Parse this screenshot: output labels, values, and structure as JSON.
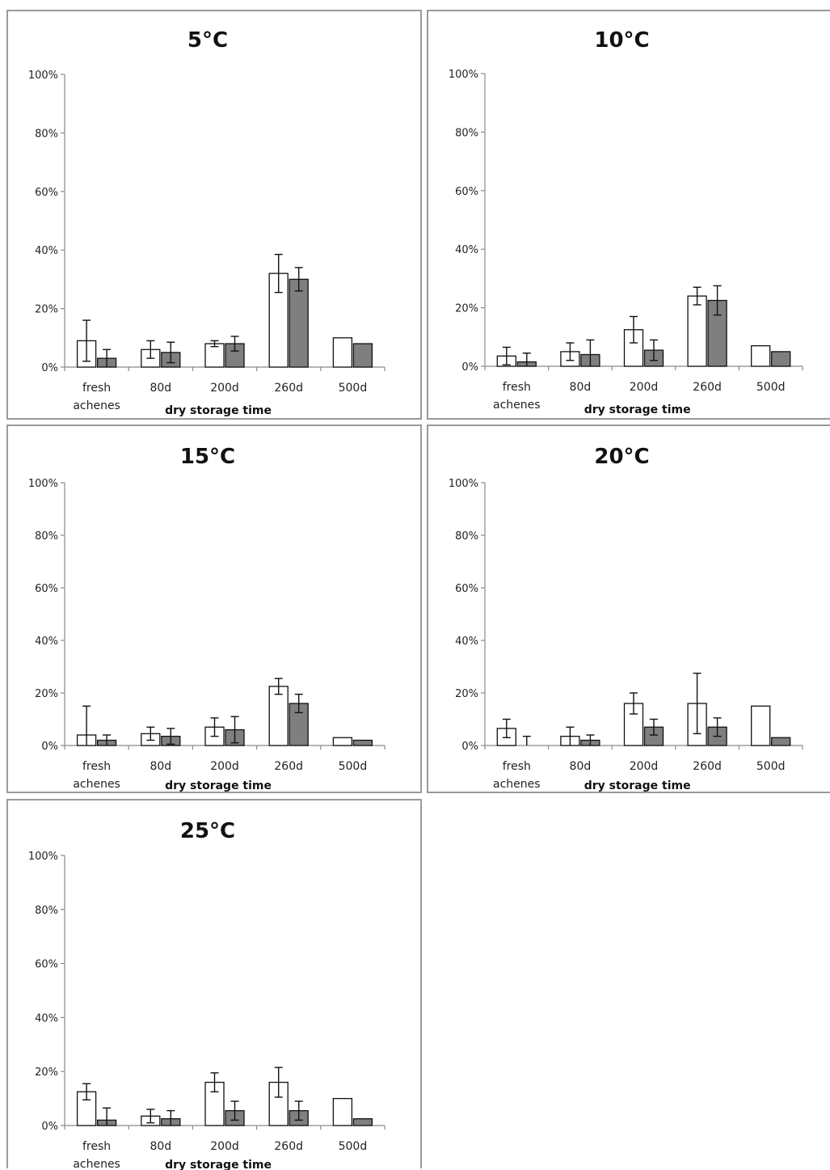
{
  "chart_data": [
    {
      "type": "bar",
      "title": "5°C",
      "xlabel": "dry storage time",
      "ylabel": "",
      "ylim": [
        0,
        100
      ],
      "yticks": [
        "0%",
        "20%",
        "40%",
        "60%",
        "80%",
        "100%"
      ],
      "categories": [
        "fresh achenes",
        "80d",
        "200d",
        "260d",
        "500d"
      ],
      "series": [
        {
          "color": "#ffffff",
          "values": [
            9,
            6,
            8,
            32,
            10
          ],
          "errors": [
            7,
            3,
            1,
            6.5,
            null
          ]
        },
        {
          "color": "#7f7f7f",
          "values": [
            3,
            5,
            8,
            30,
            8
          ],
          "errors": [
            3,
            3.5,
            2.5,
            4,
            null
          ]
        }
      ]
    },
    {
      "type": "bar",
      "title": "10°C",
      "xlabel": "dry storage time",
      "ylabel": "",
      "ylim": [
        0,
        100
      ],
      "yticks": [
        "0%",
        "20%",
        "40%",
        "60%",
        "80%",
        "100%"
      ],
      "categories": [
        "fresh achenes",
        "80d",
        "200d",
        "260d",
        "500d"
      ],
      "series": [
        {
          "color": "#ffffff",
          "values": [
            3.5,
            5,
            12.5,
            24,
            7
          ],
          "errors": [
            3,
            3,
            4.5,
            3,
            null
          ]
        },
        {
          "color": "#7f7f7f",
          "values": [
            1.5,
            4,
            5.5,
            22.5,
            5
          ],
          "errors": [
            3,
            5,
            3.5,
            5,
            null
          ]
        }
      ]
    },
    {
      "type": "bar",
      "title": "15°C",
      "xlabel": "dry storage time",
      "ylabel": "",
      "ylim": [
        0,
        100
      ],
      "yticks": [
        "0%",
        "20%",
        "40%",
        "60%",
        "80%",
        "100%"
      ],
      "categories": [
        "fresh achenes",
        "80d",
        "200d",
        "260d",
        "500d"
      ],
      "series": [
        {
          "color": "#ffffff",
          "values": [
            4,
            4.5,
            7,
            22.5,
            3
          ],
          "errors": [
            11,
            2.5,
            3.5,
            3,
            null
          ]
        },
        {
          "color": "#7f7f7f",
          "values": [
            2,
            3.5,
            6,
            16,
            2
          ],
          "errors": [
            2,
            3,
            5,
            3.5,
            null
          ]
        }
      ]
    },
    {
      "type": "bar",
      "title": "20°C",
      "xlabel": "dry storage time",
      "ylabel": "",
      "ylim": [
        0,
        100
      ],
      "yticks": [
        "0%",
        "20%",
        "40%",
        "60%",
        "80%",
        "100%"
      ],
      "categories": [
        "fresh achenes",
        "80d",
        "200d",
        "260d",
        "500d"
      ],
      "series": [
        {
          "color": "#ffffff",
          "values": [
            6.5,
            3.5,
            16,
            16,
            15
          ],
          "errors": [
            3.5,
            3.5,
            4,
            11.5,
            null
          ]
        },
        {
          "color": "#7f7f7f",
          "values": [
            0,
            2,
            7,
            7,
            3
          ],
          "errors": [
            3.5,
            2,
            3,
            3.5,
            null
          ]
        }
      ]
    },
    {
      "type": "bar",
      "title": "25°C",
      "xlabel": "dry storage time",
      "ylabel": "",
      "ylim": [
        0,
        100
      ],
      "yticks": [
        "0%",
        "20%",
        "40%",
        "60%",
        "80%",
        "100%"
      ],
      "categories": [
        "fresh achenes",
        "80d",
        "200d",
        "260d",
        "500d"
      ],
      "series": [
        {
          "color": "#ffffff",
          "values": [
            12.5,
            3.5,
            16,
            16,
            10
          ],
          "errors": [
            3,
            2.5,
            3.5,
            5.5,
            null
          ]
        },
        {
          "color": "#7f7f7f",
          "values": [
            2,
            2.5,
            5.5,
            5.5,
            2.5
          ],
          "errors": [
            4.5,
            3,
            3.5,
            3.5,
            null
          ]
        }
      ]
    }
  ]
}
